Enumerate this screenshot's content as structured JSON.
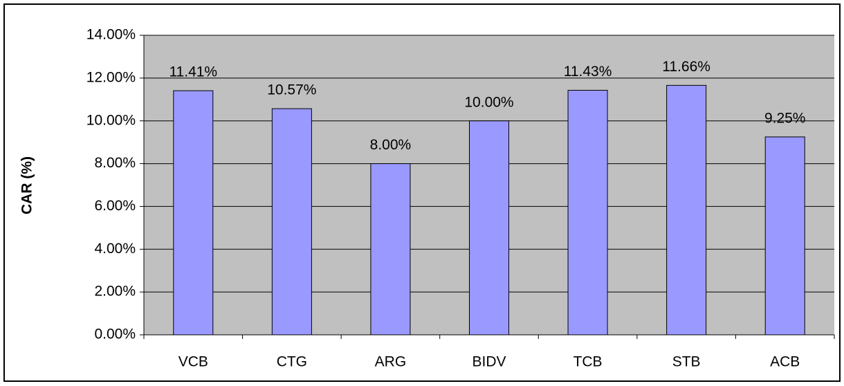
{
  "chart_data": {
    "type": "bar",
    "y_label": "CAR (%)",
    "categories": [
      "VCB",
      "CTG",
      "ARG",
      "BIDV",
      "TCB",
      "STB",
      "ACB"
    ],
    "values": [
      11.41,
      10.57,
      8.0,
      10.0,
      11.43,
      11.66,
      9.25
    ],
    "value_labels": [
      "11.41%",
      "10.57%",
      "8.00%",
      "10.00%",
      "11.43%",
      "11.66%",
      "9.25%"
    ],
    "color": "#9999ff",
    "plot_background": "#c0c0c0",
    "ylim": [
      0,
      14
    ],
    "yticks": [
      {
        "value": 0,
        "label": "0.00%"
      },
      {
        "value": 2,
        "label": "2.00%"
      },
      {
        "value": 4,
        "label": "4.00%"
      },
      {
        "value": 6,
        "label": "6.00%"
      },
      {
        "value": 8,
        "label": "8.00%"
      },
      {
        "value": 10,
        "label": "10.00%"
      },
      {
        "value": 12,
        "label": "12.00%"
      },
      {
        "value": 14,
        "label": "14.00%"
      }
    ],
    "grid": true
  }
}
